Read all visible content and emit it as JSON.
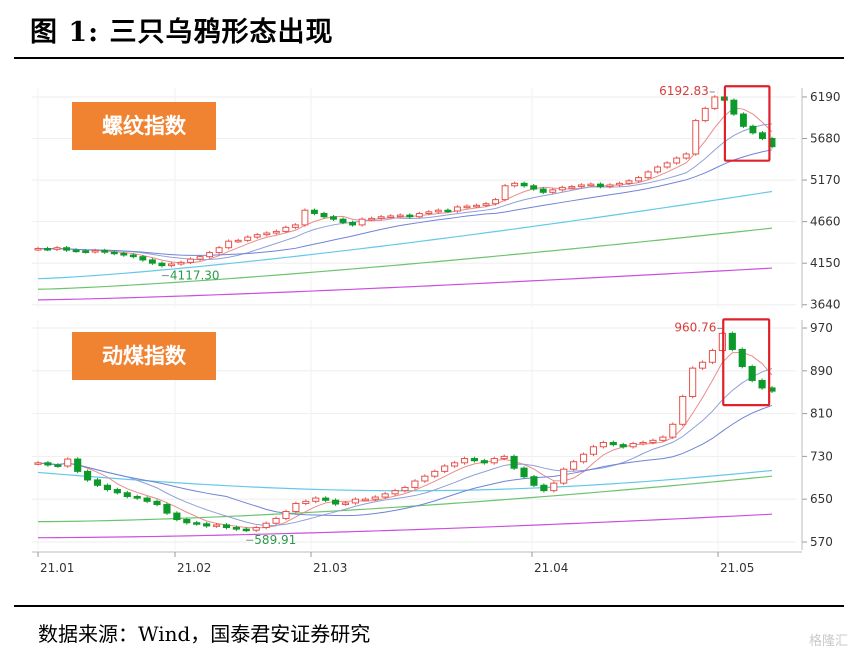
{
  "title": "图 1:  三只乌鸦形态出现",
  "source": "数据来源：Wind，国泰君安证券研究",
  "watermark": "格隆汇",
  "colors": {
    "up": "#e8534c",
    "down": "#0d9a2a",
    "label_bg": "#ef8332",
    "highlight": "#e0202a",
    "ma5": "#e98c8c",
    "ma10": "#8fa0d8",
    "ma20": "#7183d8",
    "ma60": "#64c9e8",
    "ma120": "#6ec46e",
    "ma250": "#cc4fe0"
  },
  "chart_data": [
    {
      "type": "candlestick",
      "name_label": "螺纹指数",
      "yticks": [
        6190,
        5680,
        5170,
        4660,
        4150,
        3640
      ],
      "ylim": [
        3600,
        6300
      ],
      "max_label": "6192.83",
      "min_label": "4117.30",
      "closes": [
        4330,
        4320,
        4340,
        4310,
        4300,
        4290,
        4305,
        4285,
        4270,
        4250,
        4230,
        4190,
        4150,
        4120,
        4140,
        4160,
        4200,
        4230,
        4280,
        4340,
        4420,
        4430,
        4470,
        4500,
        4520,
        4540,
        4590,
        4620,
        4800,
        4760,
        4720,
        4690,
        4650,
        4620,
        4690,
        4700,
        4720,
        4730,
        4740,
        4720,
        4760,
        4780,
        4800,
        4790,
        4840,
        4850,
        4860,
        4880,
        4930,
        5100,
        5130,
        5100,
        5060,
        5020,
        5050,
        5080,
        5090,
        5110,
        5120,
        5090,
        5110,
        5130,
        5160,
        5200,
        5270,
        5330,
        5380,
        5440,
        5490,
        5900,
        6050,
        6190,
        6150,
        5980,
        5830,
        5750,
        5680,
        5580
      ],
      "annotations": [],
      "x_ticks": [
        "21.01",
        "21.02",
        "21.03",
        "21.04",
        "21.05"
      ],
      "highlight_last_n": 5
    },
    {
      "type": "candlestick",
      "name_label": "动煤指数",
      "yticks": [
        970,
        890,
        810,
        730,
        650,
        570
      ],
      "ylim": [
        555,
        985
      ],
      "max_label": "960.76",
      "min_label": "589.91",
      "closes": [
        718,
        714,
        712,
        725,
        702,
        686,
        676,
        668,
        662,
        655,
        652,
        646,
        640,
        624,
        612,
        606,
        604,
        600,
        602,
        597,
        594,
        592,
        597,
        605,
        614,
        627,
        642,
        646,
        652,
        648,
        641,
        643,
        650,
        650,
        654,
        660,
        666,
        672,
        684,
        693,
        702,
        712,
        718,
        726,
        722,
        718,
        726,
        730,
        708,
        692,
        676,
        666,
        680,
        706,
        720,
        734,
        748,
        756,
        752,
        748,
        754,
        756,
        760,
        766,
        790,
        842,
        895,
        906,
        928,
        960,
        930,
        898,
        872,
        858,
        852
      ],
      "annotations": [],
      "x_ticks": [
        "21.01",
        "21.02",
        "21.03",
        "21.04",
        "21.05"
      ],
      "highlight_last_n": 5
    }
  ]
}
